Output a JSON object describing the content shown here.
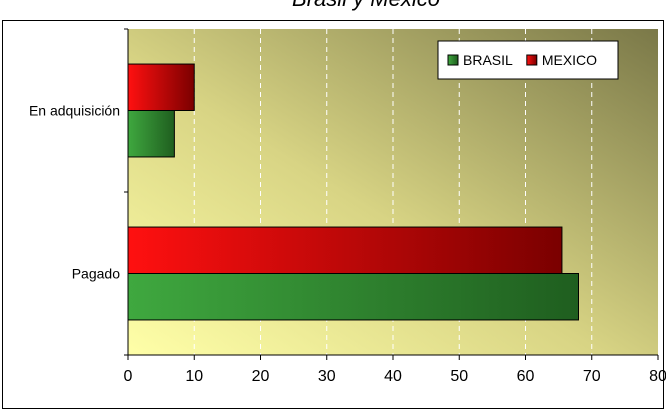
{
  "chart_data": {
    "type": "bar",
    "orientation": "horizontal",
    "title": "Brasil y México",
    "categories": [
      "En adquisición",
      "Pagado"
    ],
    "series": [
      {
        "name": "BRASIL",
        "values": [
          7,
          68
        ],
        "color": "#2e8b2e"
      },
      {
        "name": "MEXICO",
        "values": [
          10,
          65.5
        ],
        "color": "#d40000"
      }
    ],
    "xlim": [
      0,
      80
    ],
    "xticks": [
      "0",
      "10",
      "20",
      "30",
      "40",
      "50",
      "60",
      "70",
      "80"
    ],
    "grid": "vertical-dashed",
    "legend_position": "top-right",
    "background": {
      "from": "#ffffa8",
      "to": "#7a7848"
    }
  }
}
